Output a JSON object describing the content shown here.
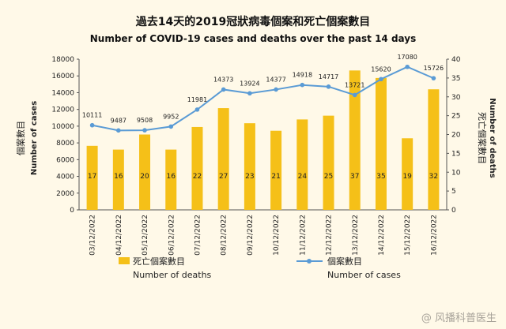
{
  "chart_data": {
    "type": "bar",
    "title": "過去14天的2019冠狀病毒個案和死亡個案數目",
    "subtitle": "Number of COVID-19 cases and deaths over the past 14 days",
    "categories": [
      "03/12/2022",
      "04/12/2022",
      "05/12/2022",
      "06/12/2022",
      "07/12/2022",
      "08/12/2022",
      "09/12/2022",
      "10/12/2022",
      "11/12/2022",
      "12/12/2022",
      "13/12/2022",
      "14/12/2022",
      "15/12/2022",
      "16/12/2022"
    ],
    "series": [
      {
        "name": "死亡個案數目",
        "name_en": "Number of deaths",
        "kind": "bar",
        "axis": "right",
        "values": [
          17,
          16,
          20,
          16,
          22,
          27,
          23,
          21,
          24,
          25,
          37,
          35,
          19,
          32
        ],
        "labels": [
          "17",
          "16",
          "20",
          "16",
          "22",
          "27",
          "23",
          "21",
          "24",
          "25",
          "37",
          "35",
          "19",
          "32"
        ]
      },
      {
        "name": "個案數目",
        "name_en": "Number of cases",
        "kind": "line",
        "axis": "left",
        "values": [
          10111,
          9487,
          9508,
          9952,
          11981,
          14373,
          13924,
          14377,
          14918,
          14717,
          13721,
          15620,
          17080,
          15726
        ],
        "labels": [
          "10111",
          "9487",
          "9508",
          "9952",
          "11981",
          "14373",
          "13924",
          "14377",
          "14918",
          "14717",
          "13721",
          "15620",
          "17080",
          "15726"
        ]
      }
    ],
    "ylabel_left": "個案數目",
    "ylabel_left_en": "Number of cases",
    "ylabel_right": "死亡個案數目",
    "ylabel_right_en": "Number of deaths",
    "ylim_left": [
      0,
      18000
    ],
    "yticks_left": [
      "0",
      "2000",
      "4000",
      "6000",
      "8000",
      "10000",
      "12000",
      "14000",
      "16000",
      "18000"
    ],
    "ylim_right": [
      0,
      40
    ],
    "yticks_right": [
      "0",
      "5",
      "10",
      "15",
      "20",
      "25",
      "30",
      "35",
      "40"
    ],
    "colors": {
      "bar": "#f5c018",
      "line": "#5a9bd5",
      "text": "#222222",
      "axis": "#555555"
    },
    "watermark": "@ 风播科普医生"
  }
}
